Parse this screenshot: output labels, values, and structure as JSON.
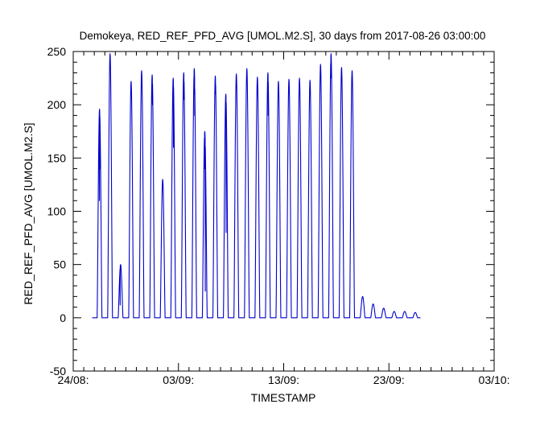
{
  "chart_data": {
    "type": "line",
    "title": "Demokeya, RED_REF_PFD_AVG [UMOL.M2.S], 30 days from  2017-08-26 03:00:00",
    "xlabel": "TIMESTAMP",
    "ylabel": "RED_REF_PFD_AVG [UMOL.M2.S]",
    "x_tick_labels": [
      "24/08:",
      "03/09:",
      "13/09:",
      "23/09:",
      "03/10:"
    ],
    "x_ticks_days": [
      0,
      10,
      20,
      30,
      40
    ],
    "xlim_days": [
      0,
      40
    ],
    "y_tick_labels": [
      "-50",
      "0",
      "50",
      "100",
      "150",
      "200",
      "250"
    ],
    "y_ticks": [
      -50,
      0,
      50,
      100,
      150,
      200,
      250
    ],
    "ylim": [
      -50,
      250
    ],
    "grid": false,
    "line_color": "#0000cc",
    "series": [
      {
        "daily_peaks": [
          {
            "date": "2017-08-26",
            "peak": 196,
            "dips": [
              [
                -0.01,
                110
              ],
              [
                0.03,
                140
              ]
            ]
          },
          {
            "date": "2017-08-27",
            "peak": 248,
            "dips": []
          },
          {
            "date": "2017-08-28",
            "peak": 50,
            "dips": [
              [
                -0.04,
                12
              ]
            ]
          },
          {
            "date": "2017-08-29",
            "peak": 222,
            "dips": []
          },
          {
            "date": "2017-08-30",
            "peak": 232,
            "dips": []
          },
          {
            "date": "2017-08-31",
            "peak": 228,
            "dips": [
              [
                0.03,
                200
              ]
            ]
          },
          {
            "date": "2017-09-01",
            "peak": 130,
            "dips": []
          },
          {
            "date": "2017-09-02",
            "peak": 225,
            "dips": [
              [
                0.03,
                160
              ]
            ]
          },
          {
            "date": "2017-09-03",
            "peak": 230,
            "dips": [
              [
                0.02,
                205
              ]
            ]
          },
          {
            "date": "2017-09-04",
            "peak": 234,
            "dips": [
              [
                -0.03,
                210
              ],
              [
                0.04,
                190
              ]
            ]
          },
          {
            "date": "2017-09-05",
            "peak": 175,
            "dips": [
              [
                -0.02,
                140
              ],
              [
                0.05,
                25
              ]
            ]
          },
          {
            "date": "2017-09-06",
            "peak": 227,
            "dips": [
              [
                0.03,
                210
              ]
            ]
          },
          {
            "date": "2017-09-07",
            "peak": 210,
            "dips": [
              [
                0.03,
                80
              ]
            ]
          },
          {
            "date": "2017-09-08",
            "peak": 229,
            "dips": []
          },
          {
            "date": "2017-09-09",
            "peak": 234,
            "dips": []
          },
          {
            "date": "2017-09-10",
            "peak": 226,
            "dips": []
          },
          {
            "date": "2017-09-11",
            "peak": 230,
            "dips": [
              [
                0.03,
                190
              ]
            ]
          },
          {
            "date": "2017-09-12",
            "peak": 222,
            "dips": []
          },
          {
            "date": "2017-09-13",
            "peak": 224,
            "dips": []
          },
          {
            "date": "2017-09-14",
            "peak": 225,
            "dips": []
          },
          {
            "date": "2017-09-15",
            "peak": 223,
            "dips": []
          },
          {
            "date": "2017-09-16",
            "peak": 238,
            "dips": []
          },
          {
            "date": "2017-09-17",
            "peak": 248,
            "dips": [
              [
                -0.02,
                225
              ]
            ]
          },
          {
            "date": "2017-09-18",
            "peak": 235,
            "dips": []
          },
          {
            "date": "2017-09-19",
            "peak": 232,
            "dips": []
          },
          {
            "date": "2017-09-20",
            "peak": 20,
            "dips": []
          },
          {
            "date": "2017-09-21",
            "peak": 13,
            "dips": []
          },
          {
            "date": "2017-09-22",
            "peak": 9,
            "dips": []
          },
          {
            "date": "2017-09-23",
            "peak": 6,
            "dips": []
          },
          {
            "date": "2017-09-24",
            "peak": 6,
            "dips": []
          },
          {
            "date": "2017-09-25",
            "peak": 5,
            "dips": []
          }
        ]
      }
    ]
  }
}
